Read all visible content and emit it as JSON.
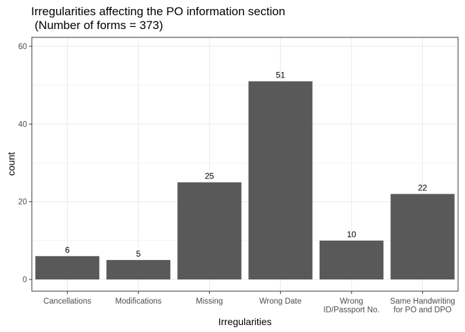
{
  "chart_data": {
    "type": "bar",
    "title": "Irregularities affecting the PO information section",
    "subtitle": "(Number of forms = 373)",
    "xlabel": "Irregularities",
    "ylabel": "count",
    "categories": [
      [
        "Cancellations"
      ],
      [
        "Modifications"
      ],
      [
        "Missing"
      ],
      [
        "Wrong Date"
      ],
      [
        "Wrong",
        "ID/Passport No."
      ],
      [
        "Same Handwriting",
        "for PO and DPO"
      ]
    ],
    "values": [
      6,
      5,
      25,
      51,
      10,
      22
    ],
    "data_labels": [
      "6",
      "5",
      "25",
      "51",
      "10",
      "22"
    ],
    "ylim": [
      0,
      60
    ],
    "yticks": [
      0,
      20,
      40,
      60
    ],
    "grid": true,
    "bar_color": "#595959",
    "panel_border_color": "#333333",
    "grid_color": "#ebebeb"
  }
}
